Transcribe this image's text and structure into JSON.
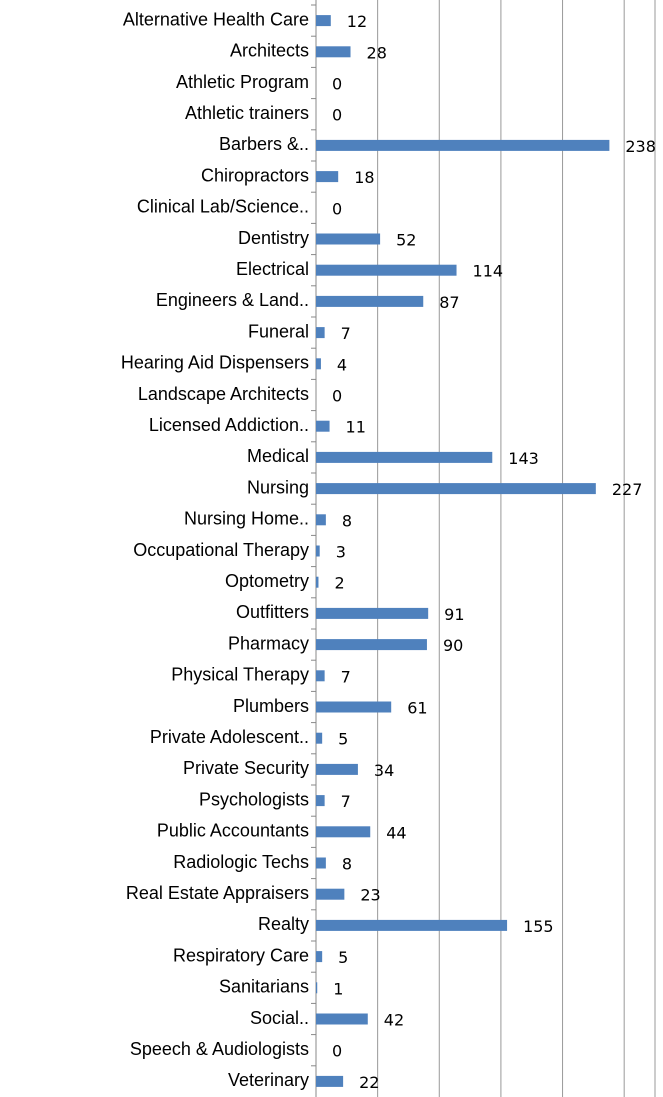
{
  "chart_data": {
    "type": "barh",
    "categories": [
      "Alternative Health Care",
      "Architects",
      "Athletic Program",
      "Athletic trainers",
      "Barbers &..",
      "Chiropractors",
      "Clinical Lab/Science..",
      "Dentistry",
      "Electrical",
      "Engineers & Land..",
      "Funeral",
      "Hearing Aid Dispensers",
      "Landscape Architects",
      "Licensed Addiction..",
      "Medical",
      "Nursing",
      "Nursing Home..",
      "Occupational Therapy",
      "Optometry",
      "Outfitters",
      "Pharmacy",
      "Physical Therapy",
      "Plumbers",
      "Private Adolescent..",
      "Private Security",
      "Psychologists",
      "Public Accountants",
      "Radiologic Techs",
      "Real Estate Appraisers",
      "Realty",
      "Respiratory Care",
      "Sanitarians",
      "Social..",
      "Speech & Audiologists",
      "Veterinary"
    ],
    "values": [
      12,
      28,
      0,
      0,
      238,
      18,
      0,
      52,
      114,
      87,
      7,
      4,
      0,
      11,
      143,
      227,
      8,
      3,
      2,
      91,
      90,
      7,
      61,
      5,
      34,
      7,
      44,
      8,
      23,
      155,
      5,
      1,
      42,
      0,
      22
    ],
    "color": "#4f81bd",
    "xlim": [
      0,
      275
    ],
    "xticks": [
      0,
      50,
      100,
      150,
      200,
      250
    ],
    "grid": true
  }
}
